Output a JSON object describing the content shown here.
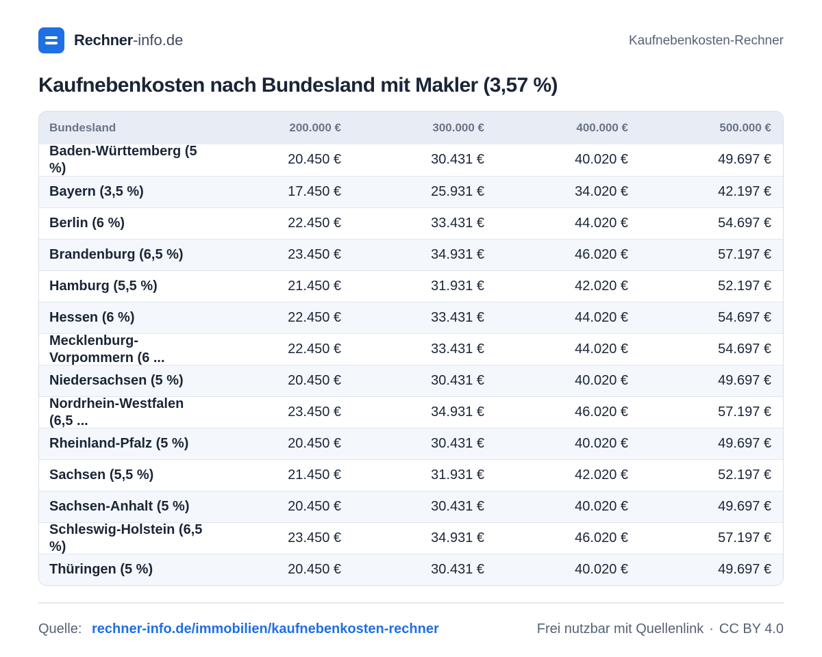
{
  "header": {
    "brand_strong": "Rechner",
    "brand_light": "-info.de",
    "tool_name": "Kaufnebenkosten-Rechner"
  },
  "title": "Kaufnebenkosten nach Bundesland mit Makler (3,57 %)",
  "table": {
    "columns": [
      "Bundesland",
      "200.000 €",
      "300.000 €",
      "400.000 €",
      "500.000 €"
    ],
    "rows": [
      {
        "name": "Baden-Württemberg (5 %)",
        "values": [
          "20.450 €",
          "30.431 €",
          "40.020 €",
          "49.697 €"
        ]
      },
      {
        "name": "Bayern (3,5 %)",
        "values": [
          "17.450 €",
          "25.931 €",
          "34.020 €",
          "42.197 €"
        ]
      },
      {
        "name": "Berlin (6 %)",
        "values": [
          "22.450 €",
          "33.431 €",
          "44.020 €",
          "54.697 €"
        ]
      },
      {
        "name": "Brandenburg (6,5 %)",
        "values": [
          "23.450 €",
          "34.931 €",
          "46.020 €",
          "57.197 €"
        ]
      },
      {
        "name": "Hamburg (5,5 %)",
        "values": [
          "21.450 €",
          "31.931 €",
          "42.020 €",
          "52.197 €"
        ]
      },
      {
        "name": "Hessen (6 %)",
        "values": [
          "22.450 €",
          "33.431 €",
          "44.020 €",
          "54.697 €"
        ]
      },
      {
        "name": "Mecklenburg-Vorpommern (6 ...",
        "values": [
          "22.450 €",
          "33.431 €",
          "44.020 €",
          "54.697 €"
        ]
      },
      {
        "name": "Niedersachsen (5 %)",
        "values": [
          "20.450 €",
          "30.431 €",
          "40.020 €",
          "49.697 €"
        ]
      },
      {
        "name": "Nordrhein-Westfalen (6,5 ...",
        "values": [
          "23.450 €",
          "34.931 €",
          "46.020 €",
          "57.197 €"
        ]
      },
      {
        "name": "Rheinland-Pfalz (5 %)",
        "values": [
          "20.450 €",
          "30.431 €",
          "40.020 €",
          "49.697 €"
        ]
      },
      {
        "name": "Sachsen (5,5 %)",
        "values": [
          "21.450 €",
          "31.931 €",
          "42.020 €",
          "52.197 €"
        ]
      },
      {
        "name": "Sachsen-Anhalt (5 %)",
        "values": [
          "20.450 €",
          "30.431 €",
          "40.020 €",
          "49.697 €"
        ]
      },
      {
        "name": "Schleswig-Holstein (6,5 %)",
        "values": [
          "23.450 €",
          "34.931 €",
          "46.020 €",
          "57.197 €"
        ]
      },
      {
        "name": "Thüringen (5 %)",
        "values": [
          "20.450 €",
          "30.431 €",
          "40.020 €",
          "49.697 €"
        ]
      }
    ]
  },
  "footer": {
    "source_label": "Quelle:",
    "source_link": "rechner-info.de/immobilien/kaufnebenkosten-rechner",
    "license_text": "Frei nutzbar mit Quellenlink",
    "separator": "·",
    "license": "CC BY 4.0"
  },
  "colors": {
    "accent": "#1f6fe5",
    "text": "#1b2537",
    "muted": "#566176",
    "header_bg": "#e8edf5",
    "row_alt": "#f4f7fb"
  },
  "icons": {
    "logo": "rechner-logo-icon"
  }
}
